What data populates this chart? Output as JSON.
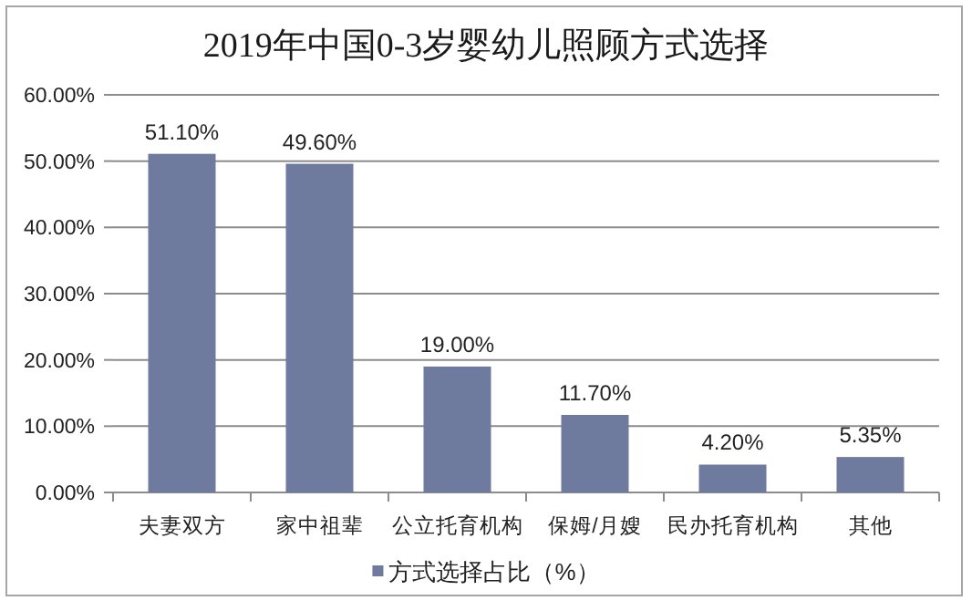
{
  "chart_data": {
    "type": "bar",
    "title": "2019年中国0-3岁婴幼儿照顾方式选择",
    "categories": [
      "夫妻双方",
      "家中祖辈",
      "公立托育机构",
      "保姆/月嫂",
      "民办托育机构",
      "其他"
    ],
    "series": [
      {
        "name": "方式选择占比（%）",
        "color": "#6f7a9f",
        "values": [
          51.1,
          49.6,
          19.0,
          11.7,
          4.2,
          5.35
        ],
        "value_labels": [
          "51.10%",
          "49.60%",
          "19.00%",
          "11.70%",
          "4.20%",
          "5.35%"
        ]
      }
    ],
    "ylim": [
      0,
      60
    ],
    "yticks": [
      {
        "value": 0,
        "label": "0.00%"
      },
      {
        "value": 10,
        "label": "10.00%"
      },
      {
        "value": 20,
        "label": "20.00%"
      },
      {
        "value": 30,
        "label": "30.00%"
      },
      {
        "value": 40,
        "label": "40.00%"
      },
      {
        "value": 50,
        "label": "50.00%"
      },
      {
        "value": 60,
        "label": "60.00%"
      }
    ],
    "grid": "y",
    "legend": "bottom"
  }
}
